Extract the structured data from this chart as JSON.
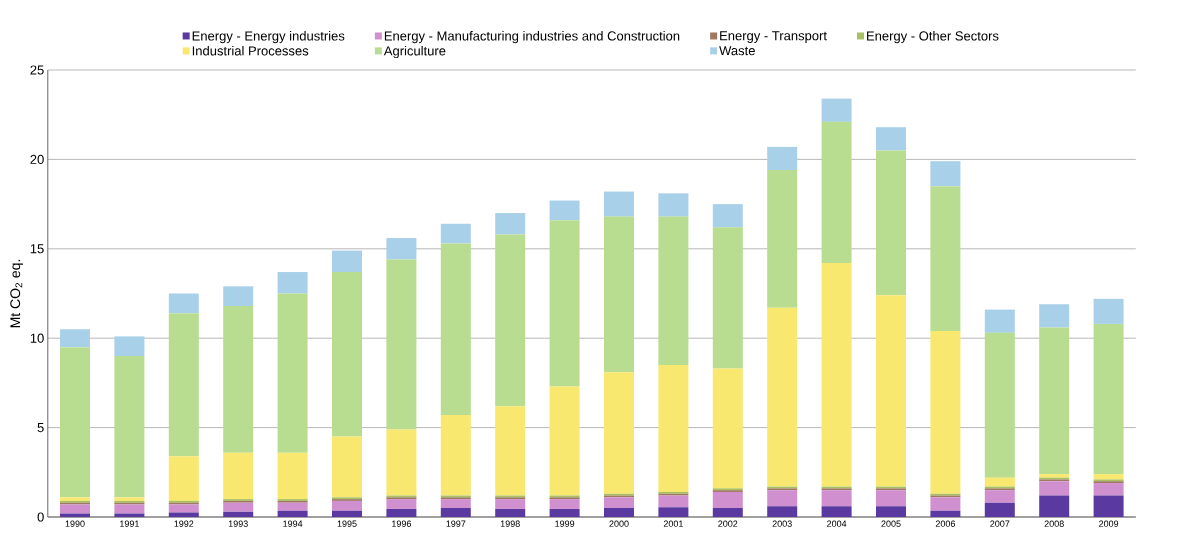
{
  "chart_data": {
    "type": "bar",
    "stacked": true,
    "ylabel": "Mt CO$_{2}$ eq.",
    "categories": [
      "1990",
      "1991",
      "1992",
      "1993",
      "1994",
      "1995",
      "1996",
      "1997",
      "1998",
      "1999",
      "2000",
      "2001",
      "2002",
      "2003",
      "2004",
      "2005",
      "2006",
      "2007",
      "2008",
      "2009"
    ],
    "series": [
      {
        "name": "Energy - Energy industries",
        "color": "#5a3aa0",
        "values": [
          0.2,
          0.2,
          0.25,
          0.3,
          0.35,
          0.35,
          0.45,
          0.5,
          0.45,
          0.45,
          0.5,
          0.55,
          0.5,
          0.6,
          0.6,
          0.6,
          0.35,
          0.8,
          1.2,
          1.2
        ]
      },
      {
        "name": "Energy - Manufacturing industries and Construction",
        "color": "#d090d0",
        "values": [
          0.5,
          0.5,
          0.45,
          0.5,
          0.45,
          0.55,
          0.55,
          0.5,
          0.55,
          0.55,
          0.6,
          0.65,
          0.9,
          0.9,
          0.9,
          0.9,
          0.75,
          0.7,
          0.8,
          0.7
        ]
      },
      {
        "name": "Energy - Transport",
        "color": "#a07860",
        "values": [
          0.1,
          0.1,
          0.1,
          0.1,
          0.1,
          0.1,
          0.1,
          0.1,
          0.1,
          0.1,
          0.1,
          0.1,
          0.1,
          0.1,
          0.1,
          0.1,
          0.1,
          0.1,
          0.1,
          0.1
        ]
      },
      {
        "name": "Energy - Other Sectors",
        "color": "#a8c060",
        "values": [
          0.1,
          0.1,
          0.1,
          0.1,
          0.1,
          0.1,
          0.1,
          0.1,
          0.1,
          0.1,
          0.1,
          0.1,
          0.1,
          0.1,
          0.1,
          0.1,
          0.1,
          0.1,
          0.1,
          0.1
        ]
      },
      {
        "name": "Industrial Processes",
        "color": "#f8e870",
        "values": [
          0.2,
          0.2,
          2.5,
          2.6,
          2.6,
          3.4,
          3.7,
          4.5,
          5.0,
          6.1,
          6.8,
          7.1,
          6.7,
          10.0,
          12.5,
          10.7,
          9.1,
          0.5,
          0.2,
          0.3
        ]
      },
      {
        "name": "Agriculture",
        "color": "#b8dc90",
        "values": [
          8.4,
          7.9,
          8.0,
          8.2,
          8.9,
          9.2,
          9.5,
          9.6,
          9.6,
          9.3,
          8.7,
          8.3,
          7.9,
          7.7,
          7.9,
          8.1,
          8.1,
          8.1,
          8.2,
          8.4
        ]
      },
      {
        "name": "Waste",
        "color": "#a8d0e8",
        "values": [
          1.0,
          1.1,
          1.1,
          1.1,
          1.2,
          1.2,
          1.2,
          1.1,
          1.2,
          1.1,
          1.4,
          1.3,
          1.3,
          1.3,
          1.3,
          1.3,
          1.4,
          1.3,
          1.3,
          1.4
        ]
      }
    ],
    "ylim": [
      0,
      25
    ],
    "yticks": [
      0,
      5,
      10,
      15,
      20,
      25
    ],
    "grid": "y",
    "legend": "top"
  }
}
